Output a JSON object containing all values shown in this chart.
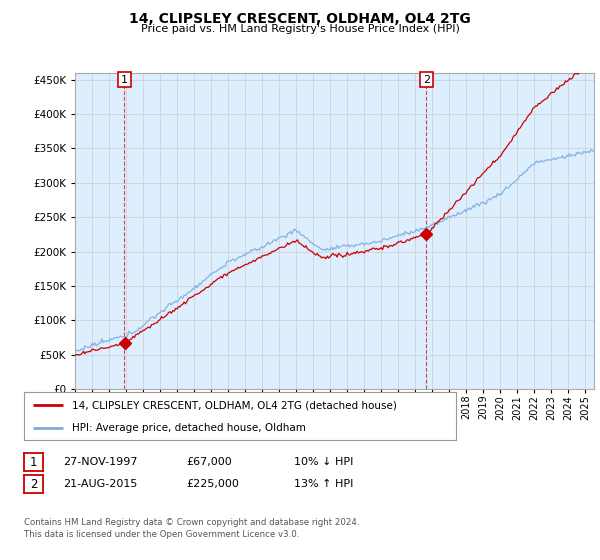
{
  "title": "14, CLIPSLEY CRESCENT, OLDHAM, OL4 2TG",
  "subtitle": "Price paid vs. HM Land Registry's House Price Index (HPI)",
  "ylabel_values": [
    0,
    50000,
    100000,
    150000,
    200000,
    250000,
    300000,
    350000,
    400000,
    450000
  ],
  "ylim": [
    0,
    460000
  ],
  "xlim_start": 1995.0,
  "xlim_end": 2025.5,
  "bg_color": "#ddeeff",
  "grid_color": "#cccccc",
  "sale1_year": 1997.9,
  "sale1_price": 67000,
  "sale2_year": 2015.64,
  "sale2_price": 225000,
  "legend_line1": "14, CLIPSLEY CRESCENT, OLDHAM, OL4 2TG (detached house)",
  "legend_line2": "HPI: Average price, detached house, Oldham",
  "annotation1_date": "27-NOV-1997",
  "annotation1_price": "£67,000",
  "annotation1_hpi": "10% ↓ HPI",
  "annotation2_date": "21-AUG-2015",
  "annotation2_price": "£225,000",
  "annotation2_hpi": "13% ↑ HPI",
  "footer": "Contains HM Land Registry data © Crown copyright and database right 2024.\nThis data is licensed under the Open Government Licence v3.0.",
  "red_line_color": "#cc0000",
  "blue_line_color": "#7aaddc",
  "marker_color": "#cc0000",
  "box_edge_color": "#cc0000"
}
